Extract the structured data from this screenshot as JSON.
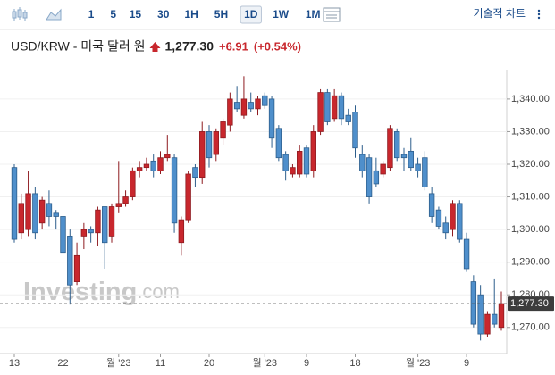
{
  "toolbar": {
    "intervals": [
      "1",
      "5",
      "15",
      "30",
      "1H",
      "5H",
      "1D",
      "1W",
      "1M"
    ],
    "selected": 6,
    "menu": "기술적 차트"
  },
  "chart_data": {
    "type": "candlestick",
    "title": "USD/KRW - 미국 달러 원",
    "price": "1,277.30",
    "change": "+6.91",
    "change_pct": "(+0.54%)",
    "watermark_brand": "Investing",
    "watermark_domain": ".com",
    "up_color": "#c8272d",
    "down_color": "#4f8fcb",
    "categories": [
      "13",
      null,
      null,
      null,
      null,
      null,
      null,
      "22",
      null,
      null,
      null,
      null,
      null,
      null,
      null,
      "월 '23",
      null,
      null,
      null,
      null,
      null,
      "11",
      null,
      null,
      null,
      null,
      null,
      null,
      "20",
      null,
      null,
      null,
      null,
      null,
      null,
      null,
      "월 '23",
      null,
      null,
      null,
      null,
      null,
      "9",
      null,
      null,
      null,
      null,
      null,
      null,
      "18",
      null,
      null,
      null,
      null,
      null,
      null,
      null,
      null,
      "월 '23",
      null,
      null,
      null,
      null,
      null,
      null,
      "9",
      null,
      null,
      null,
      null,
      null
    ],
    "open": [
      1319,
      1299,
      1300,
      1311,
      1302,
      1308,
      1305,
      1304,
      1298,
      1284,
      1298,
      1300,
      1299,
      1307,
      1298,
      1307,
      1308,
      1310,
      1318,
      1319,
      1321,
      1318,
      1322,
      1322,
      1296,
      1303,
      1319,
      1316,
      1330,
      1323,
      1328,
      1332,
      1339,
      1335,
      1339,
      1337,
      1341,
      1340,
      1331,
      1323,
      1317,
      1317,
      1325,
      1318,
      1330,
      1342,
      1334,
      1341,
      1335,
      1336,
      1323,
      1322,
      1318,
      1317,
      1319,
      1330,
      1323,
      1324,
      1320,
      1322,
      1311,
      1306,
      1302,
      1300,
      1308,
      1297,
      1284,
      1280,
      1268,
      1274,
      1270
    ],
    "high": [
      1320,
      1311,
      1318,
      1313,
      1310,
      1312,
      1306,
      1316,
      1300,
      1296,
      1302,
      1301,
      1307,
      1307,
      1308,
      1321,
      1312,
      1319,
      1321,
      1322,
      1323,
      1324,
      1329,
      1323,
      1304,
      1318,
      1320,
      1333,
      1332,
      1331,
      1334,
      1342,
      1344,
      1347,
      1342,
      1341,
      1342,
      1341,
      1332,
      1324,
      1320,
      1326,
      1326,
      1332,
      1343,
      1343,
      1343,
      1342,
      1337,
      1338,
      1326,
      1323,
      1322,
      1321,
      1332,
      1331,
      1325,
      1328,
      1322,
      1324,
      1313,
      1307,
      1304,
      1309,
      1309,
      1299,
      1286,
      1283,
      1275,
      1285,
      1281
    ],
    "low": [
      1296,
      1297,
      1298,
      1297,
      1300,
      1301,
      1300,
      1287,
      1277,
      1283,
      1294,
      1296,
      1295,
      1288,
      1296,
      1305,
      1307,
      1309,
      1316,
      1318,
      1316,
      1317,
      1321,
      1299,
      1292,
      1302,
      1313,
      1314,
      1319,
      1321,
      1326,
      1330,
      1336,
      1334,
      1336,
      1335,
      1337,
      1325,
      1321,
      1315,
      1316,
      1316,
      1316,
      1316,
      1329,
      1332,
      1333,
      1332,
      1332,
      1322,
      1316,
      1308,
      1313,
      1316,
      1318,
      1321,
      1318,
      1318,
      1316,
      1312,
      1302,
      1300,
      1297,
      1298,
      1296,
      1287,
      1270,
      1266,
      1267,
      1270,
      1269
    ],
    "close": [
      1297,
      1308,
      1311,
      1299,
      1309,
      1304,
      1304,
      1293,
      1283,
      1292,
      1300,
      1299,
      1306,
      1296,
      1307,
      1308,
      1310,
      1318,
      1319,
      1320,
      1318,
      1322,
      1323,
      1302,
      1303,
      1317,
      1316,
      1330,
      1322,
      1330,
      1333,
      1340,
      1337,
      1340,
      1337,
      1340,
      1338,
      1328,
      1322,
      1318,
      1319,
      1324,
      1317,
      1330,
      1342,
      1333,
      1341,
      1334,
      1333,
      1325,
      1318,
      1310,
      1314,
      1320,
      1331,
      1322,
      1322,
      1319,
      1318,
      1313,
      1304,
      1301,
      1299,
      1308,
      1297,
      1288,
      1271,
      1268,
      1274,
      1271,
      1277.3
    ],
    "last_price": {
      "value": 1277.3,
      "label": "1,277.30"
    },
    "ylim": [
      1262,
      1349
    ],
    "yticks": [
      {
        "value": 1270,
        "label": "1,270.00"
      },
      {
        "value": 1280,
        "label": "1,280.00"
      },
      {
        "value": 1290,
        "label": "1,290.00"
      },
      {
        "value": 1300,
        "label": "1,300.00"
      },
      {
        "value": 1310,
        "label": "1,310.00"
      },
      {
        "value": 1320,
        "label": "1,320.00"
      },
      {
        "value": 1330,
        "label": "1,330.00"
      },
      {
        "value": 1340,
        "label": "1,340.00"
      }
    ],
    "grid": true
  }
}
